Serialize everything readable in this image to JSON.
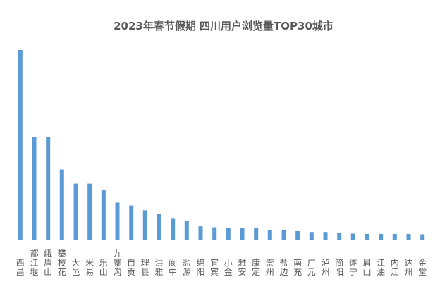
{
  "chart_data": {
    "type": "bar",
    "title": "2023年春节假期 四川用户浏览量TOP30城市",
    "xlabel": "",
    "ylabel": "",
    "ylim": [
      0,
      100
    ],
    "grid": false,
    "color": "#5b9bd5",
    "categories": [
      "西昌",
      "都江堰",
      "峨眉山",
      "攀枝花",
      "大邑",
      "米易",
      "乐山",
      "九寨沟",
      "自贡",
      "理县",
      "洪雅",
      "阆中",
      "盐源",
      "绵阳",
      "宜宾",
      "小金",
      "雅安",
      "康定",
      "崇州",
      "盐边",
      "南充",
      "广元",
      "泸州",
      "简阳",
      "遂宁",
      "眉山",
      "江油",
      "内江",
      "达州",
      "金堂"
    ],
    "values": [
      100,
      54,
      54,
      37,
      29.5,
      29.5,
      26,
      19.5,
      18,
      15.5,
      13.5,
      11,
      10,
      7,
      6.5,
      6,
      6,
      6,
      5,
      5,
      4.5,
      4,
      4,
      3.7,
      3.2,
      3,
      3,
      3,
      3,
      2.8
    ]
  }
}
